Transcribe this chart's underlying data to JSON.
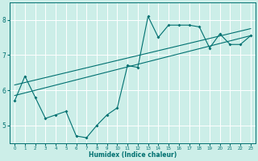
{
  "xlabel": "Humidex (Indice chaleur)",
  "ylabel": "",
  "bg_color": "#cceee8",
  "line_color": "#007070",
  "grid_color": "#ffffff",
  "xlim": [
    -0.5,
    23.5
  ],
  "ylim": [
    4.5,
    8.5
  ],
  "yticks": [
    5,
    6,
    7,
    8
  ],
  "xticks": [
    0,
    1,
    2,
    3,
    4,
    5,
    6,
    7,
    8,
    9,
    10,
    11,
    12,
    13,
    14,
    15,
    16,
    17,
    18,
    19,
    20,
    21,
    22,
    23
  ],
  "scatter_x": [
    0,
    1,
    2,
    3,
    4,
    5,
    6,
    7,
    8,
    9,
    10,
    11,
    12,
    13,
    14,
    15,
    16,
    17,
    18,
    19,
    20,
    21,
    22,
    23
  ],
  "scatter_y": [
    5.7,
    6.4,
    5.8,
    5.2,
    5.3,
    5.4,
    4.7,
    4.65,
    5.0,
    5.3,
    5.5,
    6.7,
    6.65,
    8.1,
    7.5,
    7.85,
    7.85,
    7.85,
    7.8,
    7.2,
    7.6,
    7.3,
    7.3,
    7.55
  ],
  "reg_line": [
    [
      0,
      23
    ],
    [
      5.85,
      7.55
    ]
  ],
  "reg_line2": [
    [
      0,
      23
    ],
    [
      6.15,
      7.75
    ]
  ]
}
